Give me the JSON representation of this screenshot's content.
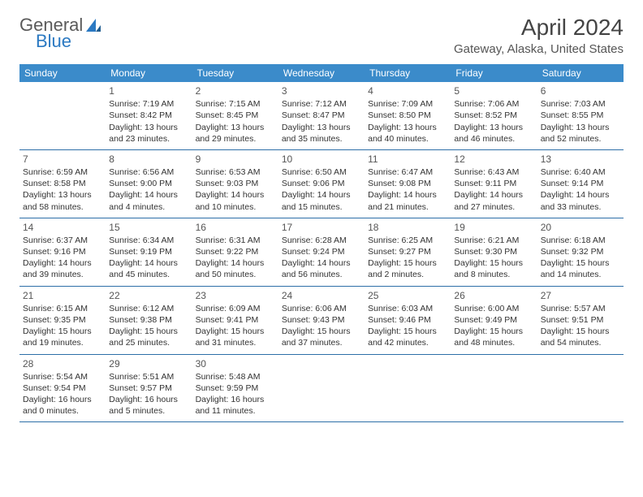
{
  "logo": {
    "text1": "General",
    "text2": "Blue"
  },
  "title": "April 2024",
  "location": "Gateway, Alaska, United States",
  "colors": {
    "header_bg": "#3b8bca",
    "header_fg": "#ffffff",
    "rule": "#2d6fa8",
    "text": "#333333",
    "title": "#444444"
  },
  "day_names": [
    "Sunday",
    "Monday",
    "Tuesday",
    "Wednesday",
    "Thursday",
    "Friday",
    "Saturday"
  ],
  "weeks": [
    [
      null,
      {
        "n": "1",
        "sr": "Sunrise: 7:19 AM",
        "ss": "Sunset: 8:42 PM",
        "d1": "Daylight: 13 hours",
        "d2": "and 23 minutes."
      },
      {
        "n": "2",
        "sr": "Sunrise: 7:15 AM",
        "ss": "Sunset: 8:45 PM",
        "d1": "Daylight: 13 hours",
        "d2": "and 29 minutes."
      },
      {
        "n": "3",
        "sr": "Sunrise: 7:12 AM",
        "ss": "Sunset: 8:47 PM",
        "d1": "Daylight: 13 hours",
        "d2": "and 35 minutes."
      },
      {
        "n": "4",
        "sr": "Sunrise: 7:09 AM",
        "ss": "Sunset: 8:50 PM",
        "d1": "Daylight: 13 hours",
        "d2": "and 40 minutes."
      },
      {
        "n": "5",
        "sr": "Sunrise: 7:06 AM",
        "ss": "Sunset: 8:52 PM",
        "d1": "Daylight: 13 hours",
        "d2": "and 46 minutes."
      },
      {
        "n": "6",
        "sr": "Sunrise: 7:03 AM",
        "ss": "Sunset: 8:55 PM",
        "d1": "Daylight: 13 hours",
        "d2": "and 52 minutes."
      }
    ],
    [
      {
        "n": "7",
        "sr": "Sunrise: 6:59 AM",
        "ss": "Sunset: 8:58 PM",
        "d1": "Daylight: 13 hours",
        "d2": "and 58 minutes."
      },
      {
        "n": "8",
        "sr": "Sunrise: 6:56 AM",
        "ss": "Sunset: 9:00 PM",
        "d1": "Daylight: 14 hours",
        "d2": "and 4 minutes."
      },
      {
        "n": "9",
        "sr": "Sunrise: 6:53 AM",
        "ss": "Sunset: 9:03 PM",
        "d1": "Daylight: 14 hours",
        "d2": "and 10 minutes."
      },
      {
        "n": "10",
        "sr": "Sunrise: 6:50 AM",
        "ss": "Sunset: 9:06 PM",
        "d1": "Daylight: 14 hours",
        "d2": "and 15 minutes."
      },
      {
        "n": "11",
        "sr": "Sunrise: 6:47 AM",
        "ss": "Sunset: 9:08 PM",
        "d1": "Daylight: 14 hours",
        "d2": "and 21 minutes."
      },
      {
        "n": "12",
        "sr": "Sunrise: 6:43 AM",
        "ss": "Sunset: 9:11 PM",
        "d1": "Daylight: 14 hours",
        "d2": "and 27 minutes."
      },
      {
        "n": "13",
        "sr": "Sunrise: 6:40 AM",
        "ss": "Sunset: 9:14 PM",
        "d1": "Daylight: 14 hours",
        "d2": "and 33 minutes."
      }
    ],
    [
      {
        "n": "14",
        "sr": "Sunrise: 6:37 AM",
        "ss": "Sunset: 9:16 PM",
        "d1": "Daylight: 14 hours",
        "d2": "and 39 minutes."
      },
      {
        "n": "15",
        "sr": "Sunrise: 6:34 AM",
        "ss": "Sunset: 9:19 PM",
        "d1": "Daylight: 14 hours",
        "d2": "and 45 minutes."
      },
      {
        "n": "16",
        "sr": "Sunrise: 6:31 AM",
        "ss": "Sunset: 9:22 PM",
        "d1": "Daylight: 14 hours",
        "d2": "and 50 minutes."
      },
      {
        "n": "17",
        "sr": "Sunrise: 6:28 AM",
        "ss": "Sunset: 9:24 PM",
        "d1": "Daylight: 14 hours",
        "d2": "and 56 minutes."
      },
      {
        "n": "18",
        "sr": "Sunrise: 6:25 AM",
        "ss": "Sunset: 9:27 PM",
        "d1": "Daylight: 15 hours",
        "d2": "and 2 minutes."
      },
      {
        "n": "19",
        "sr": "Sunrise: 6:21 AM",
        "ss": "Sunset: 9:30 PM",
        "d1": "Daylight: 15 hours",
        "d2": "and 8 minutes."
      },
      {
        "n": "20",
        "sr": "Sunrise: 6:18 AM",
        "ss": "Sunset: 9:32 PM",
        "d1": "Daylight: 15 hours",
        "d2": "and 14 minutes."
      }
    ],
    [
      {
        "n": "21",
        "sr": "Sunrise: 6:15 AM",
        "ss": "Sunset: 9:35 PM",
        "d1": "Daylight: 15 hours",
        "d2": "and 19 minutes."
      },
      {
        "n": "22",
        "sr": "Sunrise: 6:12 AM",
        "ss": "Sunset: 9:38 PM",
        "d1": "Daylight: 15 hours",
        "d2": "and 25 minutes."
      },
      {
        "n": "23",
        "sr": "Sunrise: 6:09 AM",
        "ss": "Sunset: 9:41 PM",
        "d1": "Daylight: 15 hours",
        "d2": "and 31 minutes."
      },
      {
        "n": "24",
        "sr": "Sunrise: 6:06 AM",
        "ss": "Sunset: 9:43 PM",
        "d1": "Daylight: 15 hours",
        "d2": "and 37 minutes."
      },
      {
        "n": "25",
        "sr": "Sunrise: 6:03 AM",
        "ss": "Sunset: 9:46 PM",
        "d1": "Daylight: 15 hours",
        "d2": "and 42 minutes."
      },
      {
        "n": "26",
        "sr": "Sunrise: 6:00 AM",
        "ss": "Sunset: 9:49 PM",
        "d1": "Daylight: 15 hours",
        "d2": "and 48 minutes."
      },
      {
        "n": "27",
        "sr": "Sunrise: 5:57 AM",
        "ss": "Sunset: 9:51 PM",
        "d1": "Daylight: 15 hours",
        "d2": "and 54 minutes."
      }
    ],
    [
      {
        "n": "28",
        "sr": "Sunrise: 5:54 AM",
        "ss": "Sunset: 9:54 PM",
        "d1": "Daylight: 16 hours",
        "d2": "and 0 minutes."
      },
      {
        "n": "29",
        "sr": "Sunrise: 5:51 AM",
        "ss": "Sunset: 9:57 PM",
        "d1": "Daylight: 16 hours",
        "d2": "and 5 minutes."
      },
      {
        "n": "30",
        "sr": "Sunrise: 5:48 AM",
        "ss": "Sunset: 9:59 PM",
        "d1": "Daylight: 16 hours",
        "d2": "and 11 minutes."
      },
      null,
      null,
      null,
      null
    ]
  ]
}
